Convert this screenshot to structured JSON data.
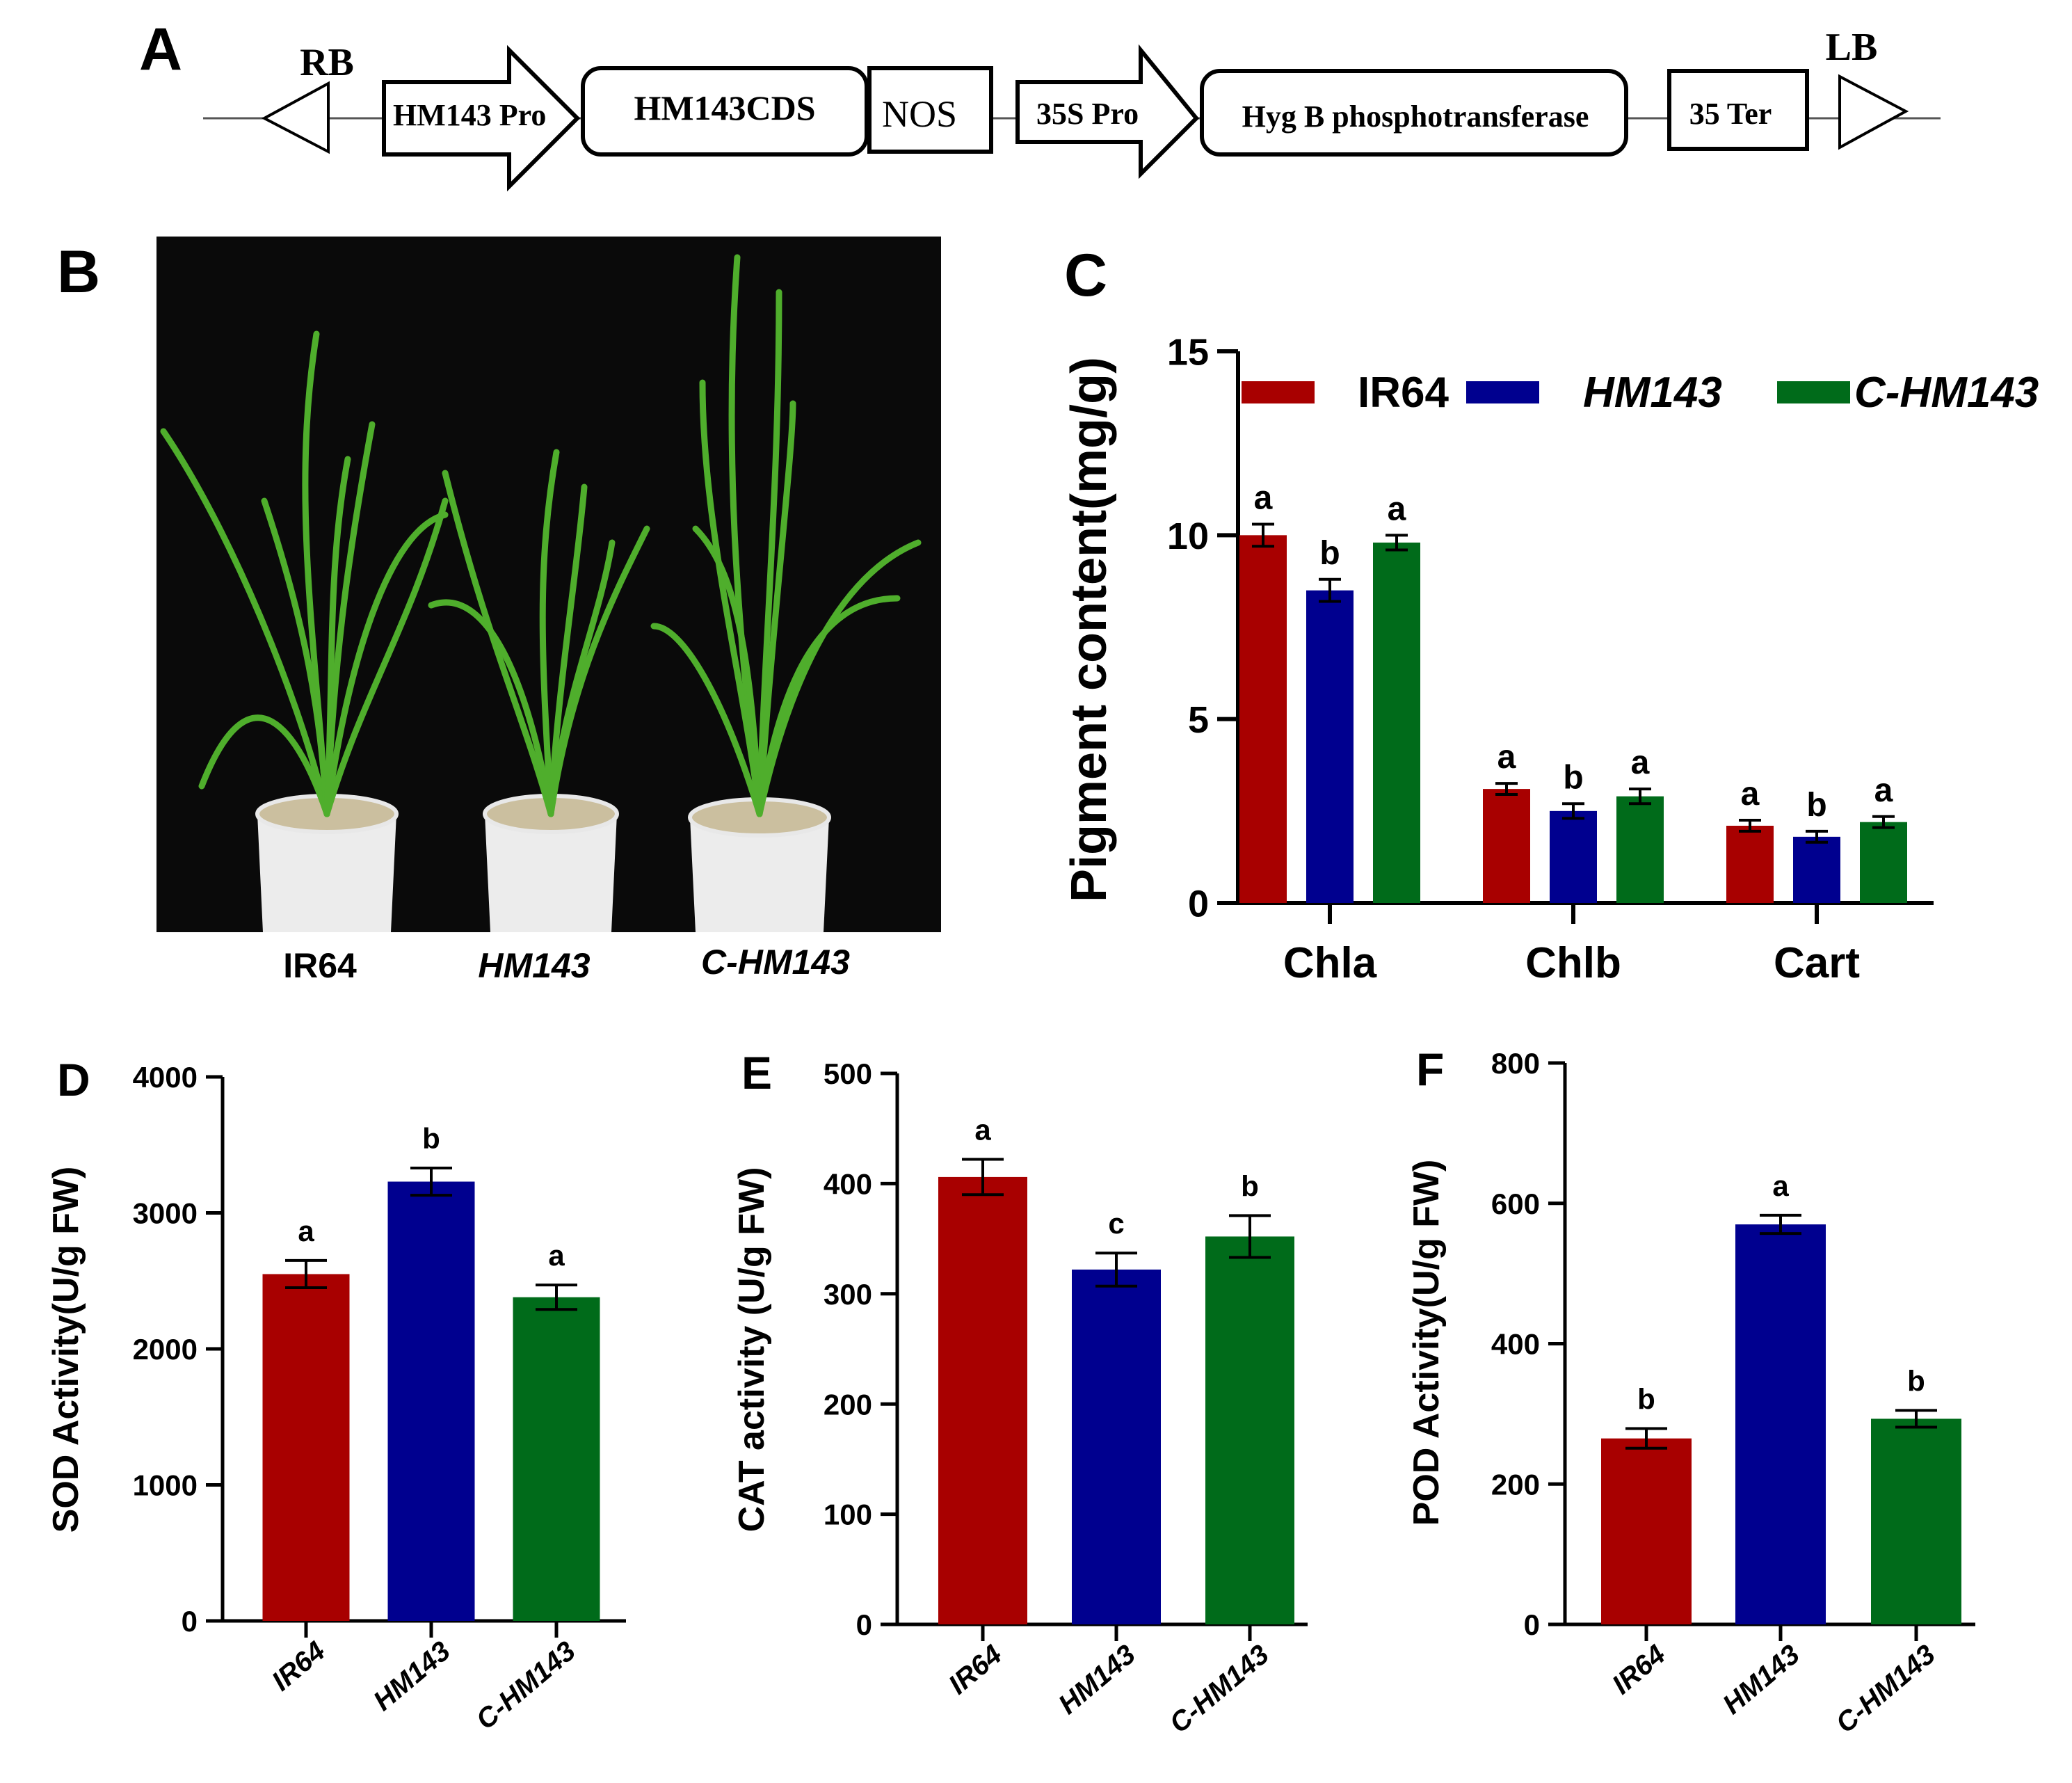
{
  "panels": {
    "a": "A",
    "b": "B",
    "c": "C",
    "d": "D",
    "e": "E",
    "f": "F"
  },
  "construct": {
    "rb": "RB",
    "lb": "LB",
    "hm143_pro": "HM143 Pro",
    "hm143_cds": "HM143CDS",
    "nos": "NOS",
    "pro35s": "35S Pro",
    "hyg": "Hyg B phosphotransferase",
    "ter35": "35 Ter"
  },
  "photo": {
    "labels": [
      "IR64",
      "HM143",
      "C-HM143"
    ]
  },
  "colors": {
    "ir64": "#a80000",
    "hm143": "#00008f",
    "chm143": "#006b1a",
    "photo_bg": "#0a0a0a",
    "leaf": "#4fae2c"
  },
  "chart_data": [
    {
      "id": "C",
      "type": "bar",
      "ylabel": "Pigment content(mg/g)",
      "ylim": [
        0,
        15
      ],
      "yticks": [
        "0",
        "5",
        "10",
        "15"
      ],
      "yticks_values": [
        0,
        5,
        10,
        15
      ],
      "categories": [
        "Chla",
        "Chlb",
        "Cart"
      ],
      "legend": [
        "IR64",
        "HM143",
        "C-HM143"
      ],
      "series": [
        {
          "name": "IR64",
          "values": [
            10.0,
            3.1,
            2.1
          ],
          "errors": [
            0.3,
            0.15,
            0.15
          ],
          "letters": [
            "a",
            "a",
            "a"
          ]
        },
        {
          "name": "HM143",
          "values": [
            8.5,
            2.5,
            1.8
          ],
          "errors": [
            0.3,
            0.2,
            0.15
          ],
          "letters": [
            "b",
            "b",
            "b"
          ]
        },
        {
          "name": "C-HM143",
          "values": [
            9.8,
            2.9,
            2.2
          ],
          "errors": [
            0.2,
            0.2,
            0.15
          ],
          "letters": [
            "a",
            "a",
            "a"
          ]
        }
      ]
    },
    {
      "id": "D",
      "type": "bar",
      "ylabel": "SOD Activity(U/g FW)",
      "ylim": [
        0,
        4000
      ],
      "yticks": [
        "0",
        "1000",
        "2000",
        "3000",
        "4000"
      ],
      "yticks_values": [
        0,
        1000,
        2000,
        3000,
        4000
      ],
      "categories": [
        "IR64",
        "HM143",
        "C-HM143"
      ],
      "values": [
        2550,
        3230,
        2380
      ],
      "errors": [
        100,
        100,
        90
      ],
      "letters": [
        "a",
        "b",
        "a"
      ]
    },
    {
      "id": "E",
      "type": "bar",
      "ylabel": "CAT activity (U/g FW)",
      "ylim": [
        0,
        500
      ],
      "yticks": [
        "0",
        "100",
        "200",
        "300",
        "400",
        "500"
      ],
      "yticks_values": [
        0,
        100,
        200,
        300,
        400,
        500
      ],
      "categories": [
        "IR64",
        "HM143",
        "C-HM143"
      ],
      "values": [
        406,
        322,
        352
      ],
      "errors": [
        16,
        15,
        19
      ],
      "letters": [
        "a",
        "c",
        "b"
      ]
    },
    {
      "id": "F",
      "type": "bar",
      "ylabel": "POD Activity(U/g FW)",
      "ylim": [
        0,
        800
      ],
      "yticks": [
        "0",
        "200",
        "400",
        "600",
        "800"
      ],
      "yticks_values": [
        0,
        200,
        400,
        600,
        800
      ],
      "categories": [
        "IR64",
        "HM143",
        "C-HM143"
      ],
      "values": [
        265,
        570,
        293
      ],
      "errors": [
        14,
        13,
        12
      ],
      "letters": [
        "b",
        "a",
        "b"
      ]
    }
  ]
}
